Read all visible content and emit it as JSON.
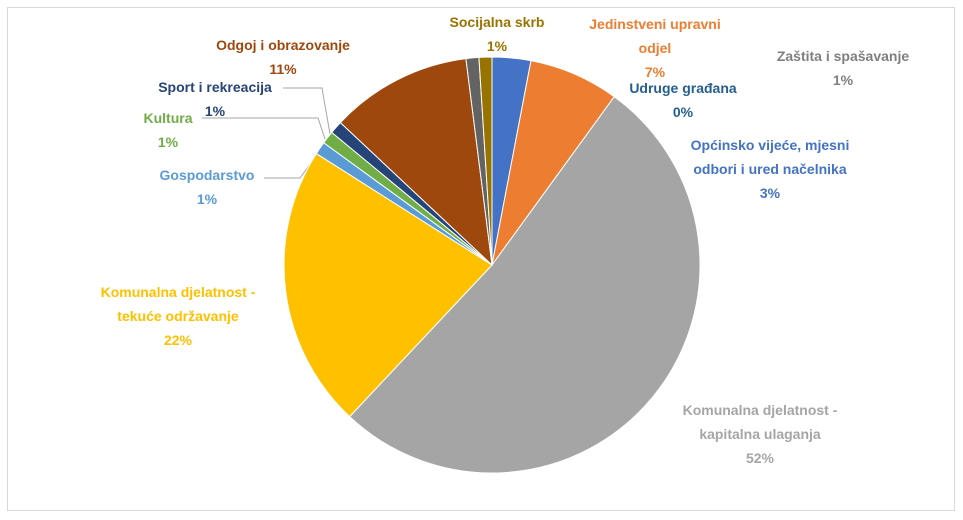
{
  "chart_data": {
    "type": "pie",
    "categories": [
      "Općinsko vijeće, mjesni odbori i ured načelnika",
      "Jedinstveni upravni odjel",
      "Komunalna djelatnost - kapitalna ulaganja",
      "Komunalna djelatnost - tekuće održavanje",
      "Gospodarstvo",
      "Kultura",
      "Sport i rekreacija",
      "Odgoj i obrazovanje",
      "Zaštita i spašavanje",
      "Socijalna skrb",
      "Udruge građana"
    ],
    "values": [
      3,
      7,
      52,
      22,
      1,
      1,
      1,
      11,
      1,
      1,
      0
    ],
    "value_labels": [
      "3%",
      "7%",
      "52%",
      "22%",
      "1%",
      "1%",
      "1%",
      "11%",
      "1%",
      "1%",
      "0%"
    ],
    "colors": [
      "#4472c4",
      "#ed7d31",
      "#a5a5a5",
      "#ffc000",
      "#5b9bd5",
      "#70ad47",
      "#264478",
      "#9e480e",
      "#636363",
      "#997300",
      "#255e91"
    ],
    "label_colors": [
      "#4472c4",
      "#ed7d31",
      "#a5a5a5",
      "#ffc000",
      "#5b9bd5",
      "#70ad47",
      "#264478",
      "#9e480e",
      "#7f7f7f",
      "#997300",
      "#255e91"
    ]
  }
}
